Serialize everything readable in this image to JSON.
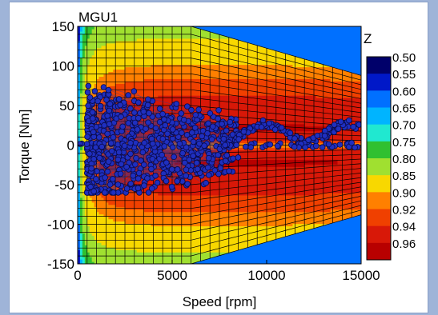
{
  "chart_data": {
    "type": "contour",
    "title": "MGU1",
    "xlabel": "Speed [rpm]",
    "ylabel": "Torque [Nm]",
    "xlim": [
      0,
      15000
    ],
    "ylim": [
      -150,
      150
    ],
    "xticks": [
      "0",
      "5000",
      "10000",
      "15000"
    ],
    "yticks": [
      "150",
      "100",
      "50",
      "0",
      "-50",
      "-100",
      "-150"
    ],
    "colorbar": {
      "title": "Z",
      "levels": [
        "0.50",
        "0.55",
        "0.60",
        "0.65",
        "0.70",
        "0.75",
        "0.80",
        "0.85",
        "0.90",
        "0.92",
        "0.94",
        "0.96"
      ],
      "colors": [
        "#00006a",
        "#0018c8",
        "#0070ff",
        "#00b4ff",
        "#20e8d0",
        "#30c030",
        "#a0e030",
        "#f8d800",
        "#ff8000",
        "#f04000",
        "#d81808",
        "#b80000"
      ]
    },
    "torque_envelope": {
      "speed": [
        0,
        6000,
        15000
      ],
      "max_torque": [
        150,
        150,
        88
      ],
      "min_torque": [
        -150,
        -150,
        -88
      ]
    },
    "operating_points": {
      "series_color": "#1f2fbf",
      "speed_range": [
        0,
        15000
      ],
      "torque_range": [
        -60,
        85
      ]
    }
  }
}
